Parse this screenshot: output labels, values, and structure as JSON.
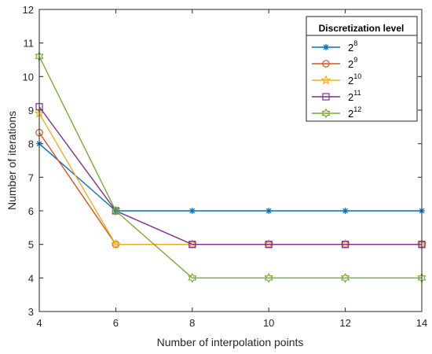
{
  "chart_data": {
    "type": "line",
    "x": [
      4,
      6,
      8,
      10,
      12,
      14
    ],
    "xlabel": "Number of interpolation points",
    "ylabel": "Number of iterations",
    "xlim": [
      4,
      14
    ],
    "ylim": [
      3,
      12
    ],
    "xticks": [
      "4",
      "6",
      "8",
      "10",
      "12",
      "14"
    ],
    "yticks": [
      "3",
      "4",
      "5",
      "6",
      "7",
      "8",
      "9",
      "10",
      "11",
      "12"
    ],
    "grid": false,
    "legend": {
      "title": "Discretization level",
      "placement": "top-right"
    },
    "series": [
      {
        "name_base": "2",
        "name_exp": "8",
        "marker": "asterisk",
        "color": "#0072BD",
        "values": [
          8.0,
          6,
          6,
          6,
          6,
          6
        ]
      },
      {
        "name_base": "2",
        "name_exp": "9",
        "marker": "circle",
        "color": "#D95319",
        "values": [
          8.33,
          5,
          5,
          5,
          5,
          5
        ]
      },
      {
        "name_base": "2",
        "name_exp": "10",
        "marker": "star",
        "color": "#EDB120",
        "values": [
          8.9,
          5,
          5,
          5,
          5,
          5
        ]
      },
      {
        "name_base": "2",
        "name_exp": "11",
        "marker": "square",
        "color": "#7E2F8E",
        "values": [
          9.1,
          6,
          5,
          5,
          5,
          5
        ]
      },
      {
        "name_base": "2",
        "name_exp": "12",
        "marker": "hexagram",
        "color": "#77AC30",
        "values": [
          10.6,
          6,
          4,
          4,
          4,
          4
        ]
      }
    ]
  }
}
